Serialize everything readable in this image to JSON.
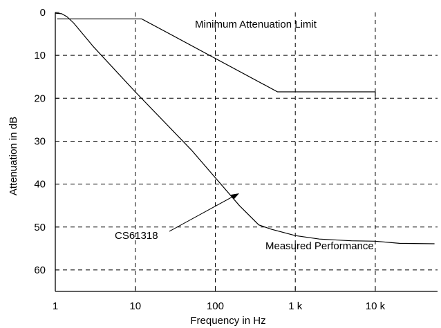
{
  "chart_data": {
    "type": "line",
    "xlabel": "Frequency in Hz",
    "ylabel": "Attenuation in dB",
    "xscale": "log",
    "yaxis_inverted": true,
    "xlim": [
      1,
      60000
    ],
    "ylim": [
      0,
      65
    ],
    "grid": true,
    "x_ticks": [
      1,
      10,
      100,
      1000,
      10000
    ],
    "x_tick_labels": [
      "1",
      "10",
      "100",
      "1 k",
      "10 k"
    ],
    "y_ticks": [
      0,
      10,
      20,
      30,
      40,
      50,
      60
    ],
    "y_tick_labels": [
      "0",
      "10",
      "20",
      "30",
      "40",
      "50",
      "60"
    ],
    "series": [
      {
        "name": "Minimum Attenuation Limit",
        "x": [
          1.05,
          12,
          600,
          10000
        ],
        "y": [
          1.5,
          1.5,
          18.5,
          18.5
        ]
      },
      {
        "name": "Measured Performance",
        "x": [
          1,
          1.2,
          1.4,
          1.7,
          3,
          10,
          50,
          200,
          350,
          500,
          1000,
          2000,
          5000,
          10000,
          20000,
          55000
        ],
        "y": [
          0.2,
          0.3,
          1.0,
          2.5,
          8.0,
          18.5,
          32.0,
          45.0,
          49.5,
          50.5,
          52.0,
          52.8,
          53.2,
          53.3,
          53.8,
          53.9
        ]
      }
    ],
    "annotations": [
      {
        "text": "Minimum Attenuation Limit"
      },
      {
        "text": "Measured Performance"
      },
      {
        "text": "CS61318"
      }
    ]
  }
}
